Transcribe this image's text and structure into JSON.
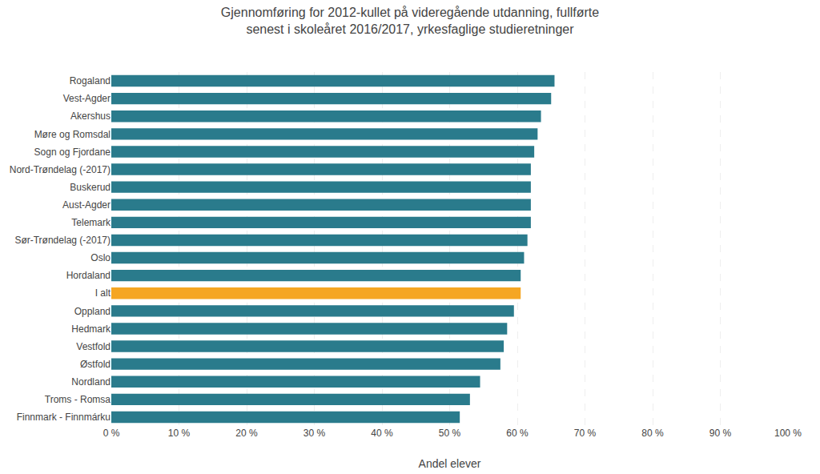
{
  "chart_data": {
    "type": "bar",
    "orientation": "horizontal",
    "title": "Gjennomføring for 2012-kullet på videregående utdanning, fullførte\nsenest i skoleåret 2016/2017, yrkesfaglige studieretninger",
    "xlabel": "Andel elever",
    "categories": [
      "Rogaland",
      "Vest-Agder",
      "Akershus",
      "Møre og Romsdal",
      "Sogn og Fjordane",
      "Nord-Trøndelag (-2017)",
      "Buskerud",
      "Aust-Agder",
      "Telemark",
      "Sør-Trøndelag (-2017)",
      "Oslo",
      "Hordaland",
      "I alt",
      "Oppland",
      "Hedmark",
      "Vestfold",
      "Østfold",
      "Nordland",
      "Troms - Romsa",
      "Finnmark - Finnmárku"
    ],
    "values": [
      65.5,
      65.0,
      63.5,
      63.0,
      62.5,
      62.0,
      62.0,
      62.0,
      62.0,
      61.5,
      61.0,
      60.5,
      60.5,
      59.5,
      58.5,
      58.0,
      57.5,
      54.5,
      53.0,
      51.5
    ],
    "colors": [
      "#2a7b8c",
      "#2a7b8c",
      "#2a7b8c",
      "#2a7b8c",
      "#2a7b8c",
      "#2a7b8c",
      "#2a7b8c",
      "#2a7b8c",
      "#2a7b8c",
      "#2a7b8c",
      "#2a7b8c",
      "#2a7b8c",
      "#f5a623",
      "#2a7b8c",
      "#2a7b8c",
      "#2a7b8c",
      "#2a7b8c",
      "#2a7b8c",
      "#2a7b8c",
      "#2a7b8c"
    ],
    "xlim": [
      0,
      100
    ],
    "xticks": [
      {
        "value": 0,
        "label": "0 %"
      },
      {
        "value": 10,
        "label": "10 %"
      },
      {
        "value": 20,
        "label": "20 %"
      },
      {
        "value": 30,
        "label": "30 %"
      },
      {
        "value": 40,
        "label": "40 %"
      },
      {
        "value": 50,
        "label": "50 %"
      },
      {
        "value": 60,
        "label": "60 %"
      },
      {
        "value": 70,
        "label": "70 %"
      },
      {
        "value": 80,
        "label": "80 %"
      },
      {
        "value": 90,
        "label": "90 %"
      },
      {
        "value": 100,
        "label": "100 %"
      }
    ],
    "grid": true
  }
}
